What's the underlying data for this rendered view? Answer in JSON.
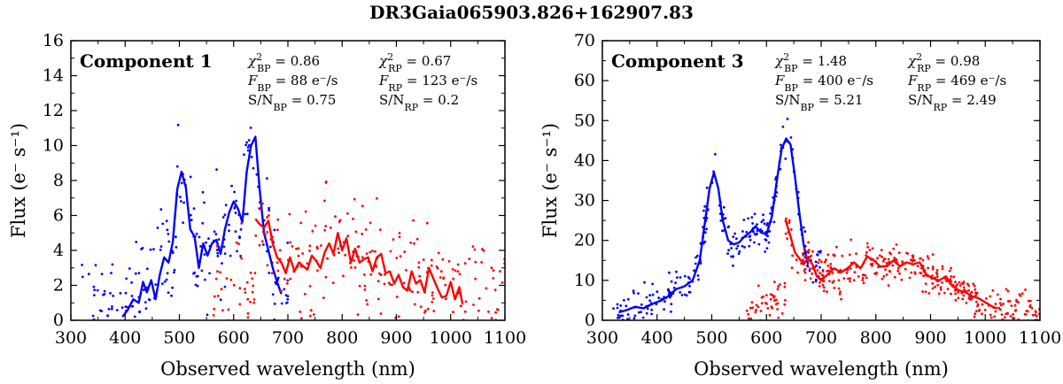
{
  "figure": {
    "title": "DR3Gaia065903.826+162907.83"
  },
  "colors": {
    "bp": "#0000ff",
    "rp": "#ff0000",
    "axis": "#000000"
  },
  "chart_data": [
    {
      "type": "scatter",
      "panel": "left",
      "label": "Component 1",
      "xlabel": "Observed wavelength (nm)",
      "ylabel": "Flux (e⁻ s⁻¹)",
      "xlim": [
        300,
        1100
      ],
      "ylim": [
        0,
        16
      ],
      "xticks": [
        300,
        400,
        500,
        600,
        700,
        800,
        900,
        1000,
        1100
      ],
      "yticks": [
        0,
        2,
        4,
        6,
        8,
        10,
        12,
        14,
        16
      ],
      "grid": false,
      "stats": {
        "chi_bp": "χ²BP = 0.86",
        "chi_rp": "χ²RP = 0.67",
        "f_bp": "FBP = 88 e⁻/s",
        "f_rp": "FRP = 123 e⁻/s",
        "sn_bp": "S/NBP = 0.75",
        "sn_rp": "S/NRP = 0.2"
      },
      "series": [
        {
          "name": "BP",
          "color": "#0000ff",
          "line": {
            "x": [
              395,
              405,
              415,
              425,
              433,
              440,
              448,
              456,
              464,
              472,
              480,
              488,
              496,
              504,
              512,
              520,
              528,
              536,
              544,
              552,
              560,
              568,
              576,
              584,
              592,
              600,
              608,
              616,
              624,
              632,
              640,
              648,
              656,
              664,
              672,
              680,
              688
            ],
            "y": [
              0.2,
              0.6,
              1.2,
              1.0,
              2.2,
              1.6,
              2.3,
              1.2,
              2.6,
              3.6,
              3.3,
              4.5,
              7.5,
              8.5,
              7.6,
              5.2,
              4.8,
              3.0,
              4.4,
              3.7,
              4.4,
              4.6,
              3.8,
              5.2,
              6.2,
              6.8,
              6.4,
              5.6,
              8.5,
              10.0,
              10.5,
              7.5,
              5.0,
              4.0,
              3.0,
              2.2,
              1.5
            ]
          },
          "points_range": [
            320,
            700
          ],
          "points_center": "line",
          "points_scatter": 2.6,
          "points_count": 230
        },
        {
          "name": "RP",
          "color": "#ff0000",
          "line": {
            "x": [
              640,
              648,
              656,
              664,
              672,
              680,
              688,
              696,
              704,
              712,
              720,
              728,
              736,
              744,
              752,
              760,
              768,
              776,
              784,
              792,
              800,
              808,
              816,
              824,
              832,
              840,
              848,
              856,
              864,
              872,
              880,
              888,
              896,
              904,
              912,
              920,
              928,
              936,
              944,
              952,
              960,
              968,
              976,
              984,
              992,
              1000,
              1008,
              1016,
              1022
            ],
            "y": [
              5.8,
              5.5,
              5.3,
              5.7,
              4.4,
              3.6,
              3.3,
              2.7,
              3.6,
              2.8,
              3.3,
              3.1,
              2.9,
              3.7,
              3.4,
              3.0,
              3.9,
              4.4,
              3.8,
              5.0,
              4.0,
              4.7,
              3.3,
              4.1,
              3.3,
              3.5,
              3.6,
              2.8,
              3.6,
              3.8,
              2.7,
              2.8,
              2.1,
              2.6,
              1.9,
              1.7,
              2.8,
              2.1,
              2.3,
              1.6,
              3.0,
              2.4,
              1.8,
              1.3,
              1.4,
              2.2,
              1.2,
              1.9,
              0.9
            ]
          },
          "points_range": [
            560,
            1100
          ],
          "points_center": "band",
          "points_scatter": 2.8,
          "points_count": 300
        }
      ]
    },
    {
      "type": "scatter",
      "panel": "right",
      "label": "Component 3",
      "xlabel": "Observed wavelength (nm)",
      "ylabel": "Flux (e⁻ s⁻¹)",
      "xlim": [
        300,
        1100
      ],
      "ylim": [
        0,
        70
      ],
      "xticks": [
        300,
        400,
        500,
        600,
        700,
        800,
        900,
        1000,
        1100
      ],
      "yticks": [
        0,
        10,
        20,
        30,
        40,
        50,
        60,
        70
      ],
      "grid": false,
      "stats": {
        "chi_bp": "χ²BP = 1.48",
        "chi_rp": "χ²RP = 0.98",
        "f_bp": "FBP = 400 e⁻/s",
        "f_rp": "FRP = 469 e⁻/s",
        "sn_bp": "S/NBP = 5.21",
        "sn_rp": "S/NRP = 2.49"
      },
      "series": [
        {
          "name": "BP",
          "color": "#0000ff",
          "line": {
            "x": [
              330,
              345,
              360,
              375,
              390,
              405,
              420,
              435,
              450,
              465,
              478,
              488,
              496,
              504,
              512,
              520,
              530,
              540,
              550,
              560,
              570,
              580,
              590,
              600,
              610,
              620,
              628,
              636,
              644,
              652,
              660,
              668,
              676
            ],
            "y": [
              2.0,
              2.6,
              3.4,
              3.0,
              4.0,
              4.8,
              6.0,
              7.8,
              8.5,
              10.0,
              15.0,
              25.0,
              33.0,
              37.0,
              33.0,
              25.0,
              20.0,
              19.0,
              19.5,
              21.0,
              22.0,
              23.5,
              22.0,
              21.5,
              26.0,
              36.0,
              43.0,
              45.5,
              44.0,
              36.0,
              27.0,
              19.0,
              14.0
            ]
          },
          "points_range": [
            320,
            700
          ],
          "points_center": "line",
          "points_scatter": 3.5,
          "points_count": 260
        },
        {
          "name": "RP",
          "color": "#ff0000",
          "line": {
            "x": [
              635,
              644,
              652,
              660,
              668,
              676,
              684,
              692,
              700,
              712,
              724,
              736,
              748,
              760,
              772,
              784,
              796,
              808,
              820,
              832,
              844,
              856,
              868,
              880,
              892,
              904,
              916,
              928,
              940,
              952,
              964,
              976,
              988,
              1000,
              1012,
              1022
            ],
            "y": [
              25.0,
              21.0,
              17.0,
              15.5,
              14.0,
              15.5,
              14.0,
              11.0,
              10.0,
              11.5,
              13.0,
              12.0,
              13.0,
              14.5,
              13.0,
              16.0,
              15.0,
              13.5,
              13.5,
              15.0,
              13.5,
              14.5,
              14.0,
              14.5,
              11.5,
              10.5,
              10.0,
              11.0,
              8.5,
              7.5,
              7.0,
              6.0,
              5.5,
              4.5,
              3.5,
              3.0
            ]
          },
          "points_range": [
            560,
            1100
          ],
          "points_center": "band",
          "points_scatter": 3.8,
          "points_count": 420
        }
      ]
    }
  ]
}
